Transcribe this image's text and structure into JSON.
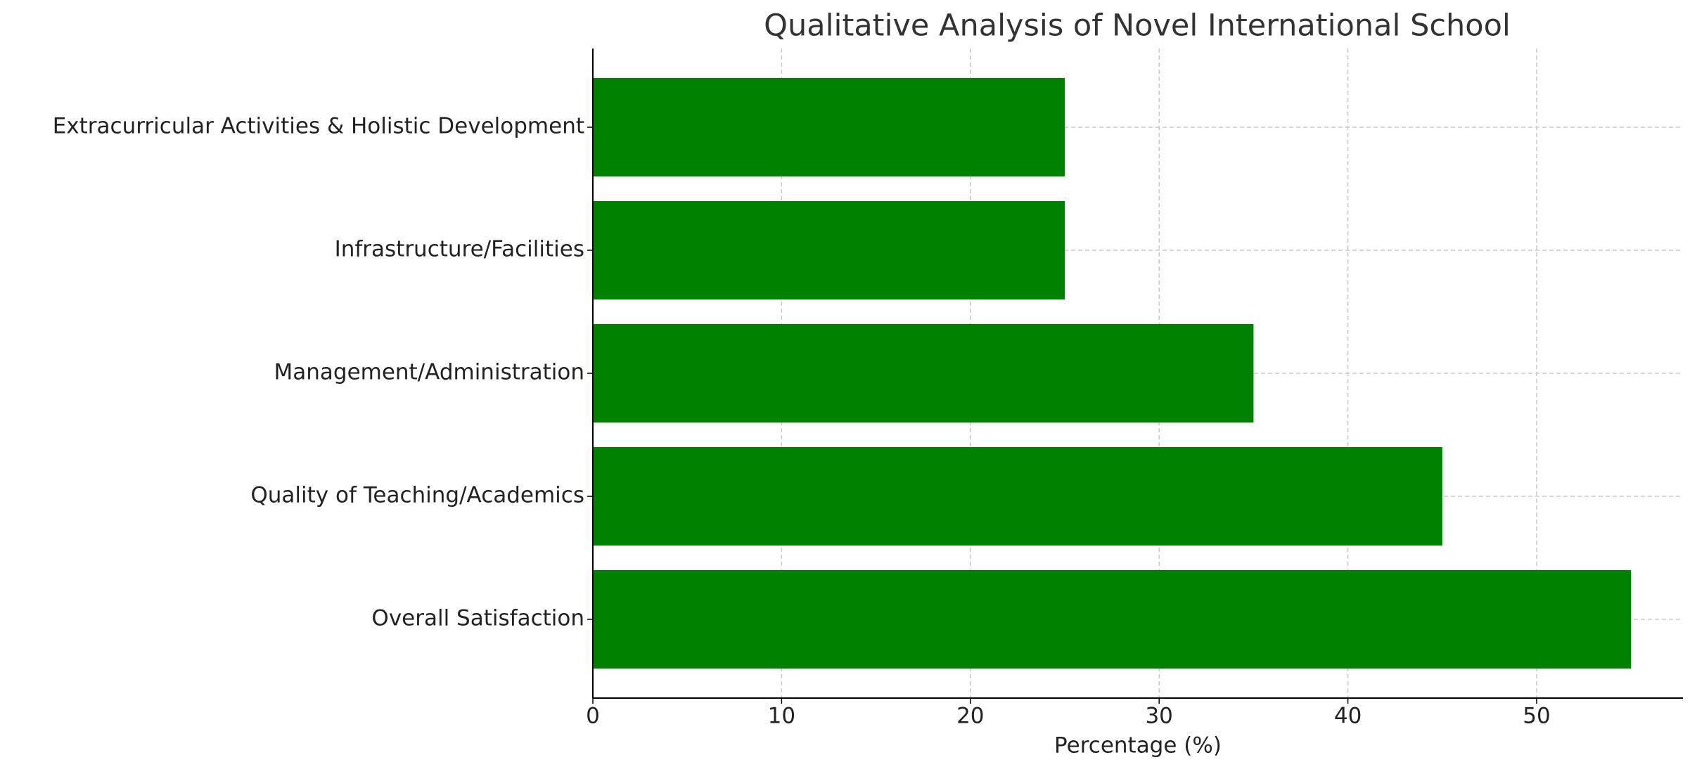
{
  "chart_data": {
    "type": "barh",
    "title": "Qualitative Analysis of Novel International School",
    "xlabel": "Percentage (%)",
    "categories": [
      "Overall Satisfaction",
      "Quality of Teaching/Academics",
      "Management/Administration",
      "Infrastructure/Facilities",
      "Extracurricular Activities & Holistic Development"
    ],
    "values": [
      55,
      45,
      35,
      25,
      25
    ],
    "color": "#008000",
    "xlim": [
      0,
      57.75
    ],
    "xticks": [
      0,
      10,
      20,
      30,
      40,
      50
    ],
    "grid": true
  }
}
